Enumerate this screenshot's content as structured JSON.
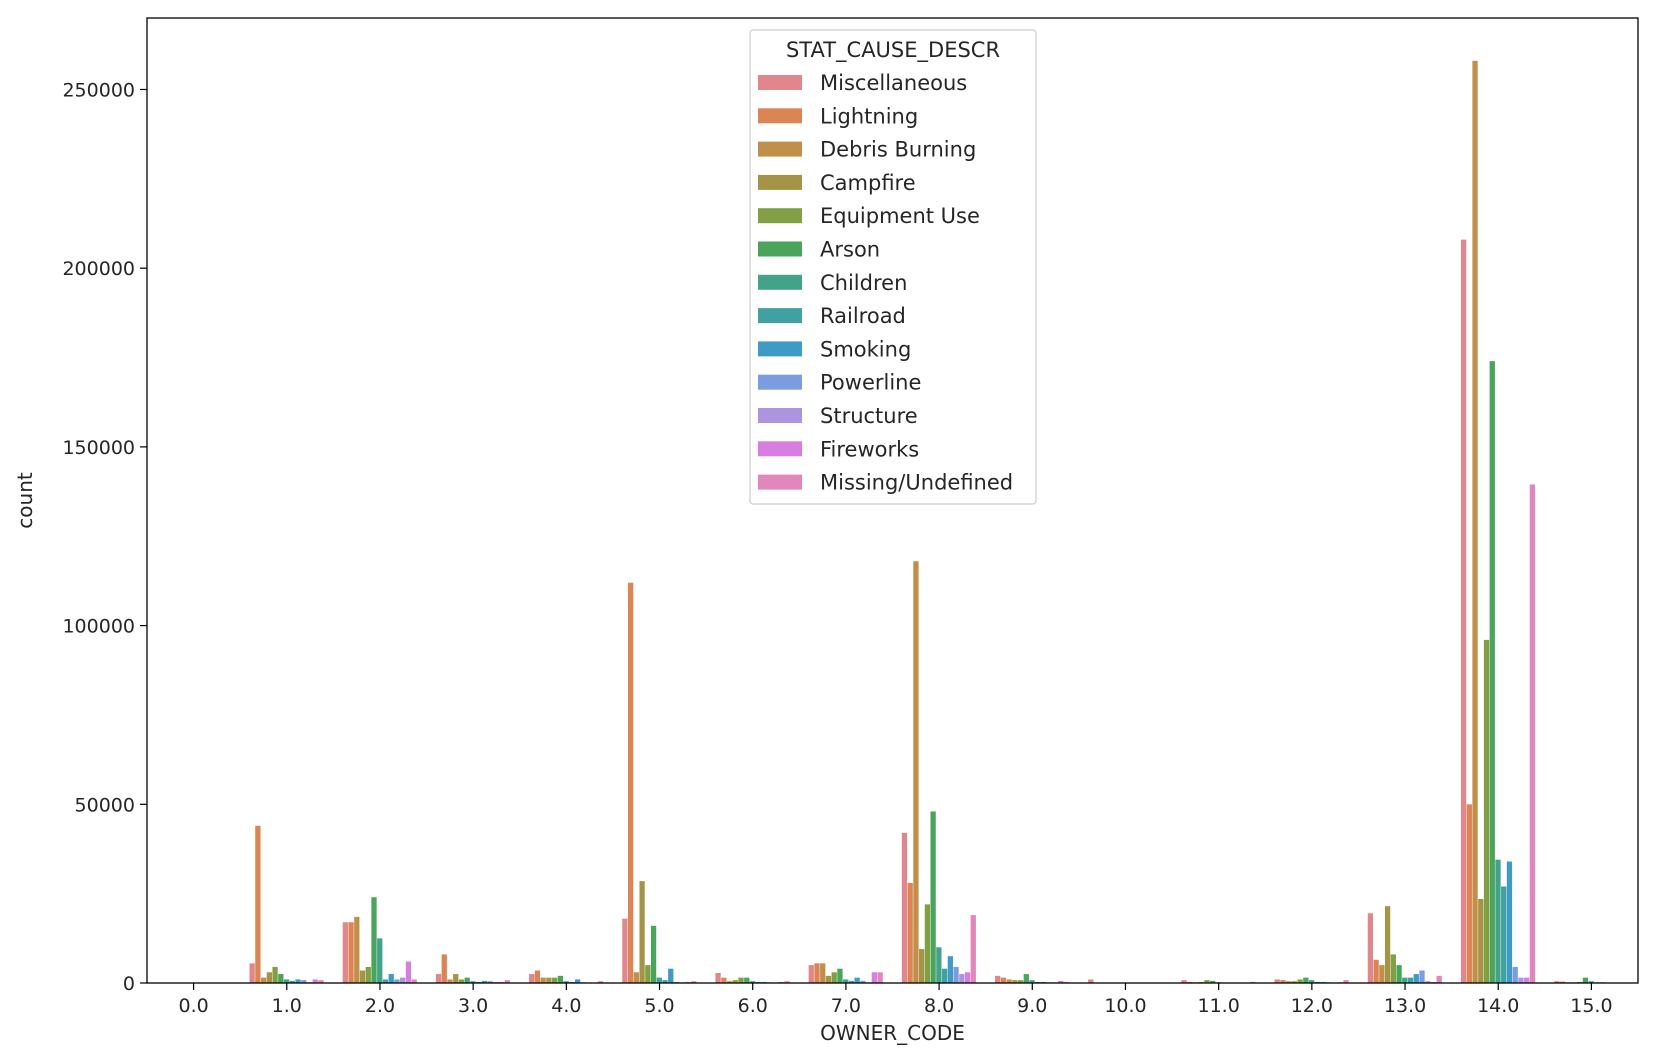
{
  "chart_data": {
    "type": "bar",
    "xlabel": "OWNER_CODE",
    "ylabel": "count",
    "ylim": [
      0,
      270000
    ],
    "y_ticks": [
      0,
      50000,
      100000,
      150000,
      200000,
      250000
    ],
    "categories": [
      "0.0",
      "1.0",
      "2.0",
      "3.0",
      "4.0",
      "5.0",
      "6.0",
      "7.0",
      "8.0",
      "9.0",
      "10.0",
      "11.0",
      "12.0",
      "13.0",
      "14.0",
      "15.0"
    ],
    "legend": {
      "title": "STAT_CAUSE_DESCR",
      "position": "upper center"
    },
    "grid": false,
    "series": [
      {
        "name": "Miscellaneous",
        "color": "#e1868a",
        "values": [
          0,
          5500,
          17000,
          2500,
          2500,
          18000,
          2800,
          5000,
          42000,
          2000,
          1000,
          800,
          1000,
          19500,
          208000,
          500
        ]
      },
      {
        "name": "Lightning",
        "color": "#dc8554",
        "values": [
          0,
          44000,
          17000,
          8000,
          3500,
          112000,
          1500,
          5500,
          28000,
          1500,
          0,
          300,
          800,
          6500,
          50000,
          400
        ]
      },
      {
        "name": "Debris Burning",
        "color": "#c18f4a",
        "values": [
          0,
          1500,
          18500,
          1000,
          1500,
          3000,
          500,
          5500,
          118000,
          1000,
          0,
          200,
          500,
          5000,
          258000,
          200
        ]
      },
      {
        "name": "Campfire",
        "color": "#a49447",
        "values": [
          0,
          3000,
          3500,
          2500,
          1500,
          28500,
          800,
          2000,
          9500,
          800,
          0,
          300,
          500,
          21500,
          23500,
          200
        ]
      },
      {
        "name": "Equipment Use",
        "color": "#81a044",
        "values": [
          0,
          4500,
          4500,
          1000,
          1500,
          5000,
          1500,
          3000,
          22000,
          800,
          0,
          800,
          1000,
          8000,
          96000,
          300
        ]
      },
      {
        "name": "Arson",
        "color": "#4ba45c",
        "values": [
          0,
          2500,
          24000,
          1500,
          2000,
          16000,
          1500,
          4000,
          48000,
          2500,
          0,
          600,
          1500,
          5000,
          174000,
          1500
        ]
      },
      {
        "name": "Children",
        "color": "#42a28a",
        "values": [
          0,
          1000,
          12500,
          500,
          500,
          1500,
          500,
          1000,
          10000,
          800,
          0,
          200,
          800,
          1500,
          34500,
          500
        ]
      },
      {
        "name": "Railroad",
        "color": "#41a0a0",
        "values": [
          0,
          600,
          1000,
          300,
          300,
          800,
          300,
          600,
          4000,
          300,
          0,
          100,
          300,
          1500,
          27000,
          200
        ]
      },
      {
        "name": "Smoking",
        "color": "#3f9bc6",
        "values": [
          0,
          1000,
          2500,
          600,
          1000,
          4000,
          300,
          1500,
          7500,
          300,
          0,
          100,
          300,
          2500,
          34000,
          200
        ]
      },
      {
        "name": "Powerline",
        "color": "#7b9ce0",
        "values": [
          0,
          800,
          1000,
          500,
          200,
          300,
          200,
          600,
          4500,
          200,
          0,
          100,
          200,
          3500,
          4500,
          100
        ]
      },
      {
        "name": "Structure",
        "color": "#ad94e0",
        "values": [
          0,
          200,
          1500,
          300,
          100,
          200,
          100,
          200,
          2500,
          200,
          0,
          100,
          100,
          500,
          1500,
          100
        ]
      },
      {
        "name": "Fireworks",
        "color": "#d77fe0",
        "values": [
          0,
          1000,
          6000,
          300,
          100,
          300,
          300,
          3000,
          3000,
          600,
          0,
          100,
          200,
          300,
          1500,
          100
        ]
      },
      {
        "name": "Missing/Undefined",
        "color": "#e187bb",
        "values": [
          0,
          800,
          1000,
          800,
          500,
          500,
          500,
          3000,
          19000,
          300,
          0,
          300,
          800,
          2000,
          139500,
          100
        ]
      }
    ]
  }
}
